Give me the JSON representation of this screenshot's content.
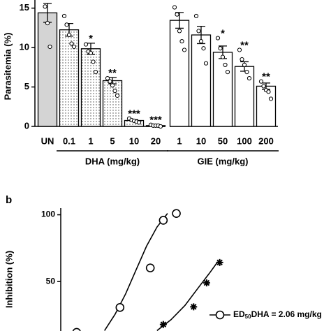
{
  "chart_data": [
    {
      "type": "bar",
      "y_label": "Parasitemia (%)",
      "categories": [
        "UN",
        "0.1",
        "1",
        "5",
        "10",
        "20",
        "1",
        "10",
        "50",
        "100",
        "200"
      ],
      "values": [
        14.4,
        12.25,
        9.85,
        5.8,
        0.75,
        0.1,
        13.45,
        11.6,
        9.4,
        7.6,
        5.1
      ],
      "errors": [
        1.2,
        0.8,
        0.7,
        0.4,
        0.1,
        0.05,
        1.0,
        1.1,
        0.8,
        0.6,
        0.4
      ],
      "points": [
        [
          15.2,
          13.1,
          10.1
        ],
        [
          14.0,
          12.9,
          11.6,
          10.5,
          10.1
        ],
        [
          10.4,
          9.5,
          9.3,
          8.2,
          6.9
        ],
        [
          6.1,
          5.7,
          5.2,
          4.5,
          3.9
        ],
        [
          1.0,
          0.8,
          0.7,
          0.6,
          0.5
        ],
        [
          0.2,
          0.1,
          0.1,
          0.1,
          0.0
        ],
        [
          15.1,
          14.2,
          12.1,
          10.8,
          9.7
        ],
        [
          14.0,
          12.1,
          10.8,
          9.9,
          8.0
        ],
        [
          11.2,
          9.9,
          8.8,
          7.8,
          6.9
        ],
        [
          9.7,
          8.5,
          7.8,
          6.9,
          6.1
        ],
        [
          5.7,
          5.1,
          4.6,
          4.4,
          3.5
        ]
      ],
      "significance": [
        null,
        null,
        "*",
        "**",
        "***",
        "***",
        null,
        null,
        "*",
        "**",
        "**"
      ],
      "fills": [
        "#d4d4d4",
        "dots",
        "dots",
        "dots",
        "dots",
        "dots",
        "#ffffff",
        "#ffffff",
        "#ffffff",
        "#ffffff",
        "#ffffff"
      ],
      "groups": [
        {
          "label": "DHA (mg/kg)",
          "from": 1,
          "to": 5
        },
        {
          "label": "GIE (mg/kg)",
          "from": 6,
          "to": 10
        }
      ],
      "ylim": [
        0,
        15.5
      ],
      "yticks": [
        0,
        5,
        10,
        15
      ]
    },
    {
      "type": "scatter",
      "panel_label": "b",
      "y_label": "Inhibition (%)",
      "xscale": "log",
      "xlim": [
        0.043,
        74000
      ],
      "ylim": [
        13,
        105
      ],
      "yticks": [
        50,
        100
      ],
      "series": [
        {
          "marker": "circle",
          "x": [
            0.1,
            1,
            5,
            10,
            20
          ],
          "values": [
            12,
            30.6,
            60.2,
            95.9,
            101
          ],
          "curve_x": [
            0.44,
            0.77,
            1.35,
            2.35,
            4.1,
            7.15,
            12.5
          ],
          "curve_y": [
            13.3,
            25.5,
            40.8,
            58.7,
            76.5,
            90.8,
            101
          ]
        },
        {
          "marker": "star",
          "x": [
            10,
            50,
            100,
            200
          ],
          "values": [
            17.9,
            31.1,
            49,
            64.3
          ],
          "curve_x": [
            7.15,
            15,
            31.5,
            66,
            115,
            180
          ],
          "curve_y": [
            13.3,
            21.4,
            32.1,
            45.9,
            56.1,
            64.8
          ]
        }
      ],
      "legend": [
        {
          "parts": [
            "ED",
            "50",
            "DHA = 2.06 mg/kg"
          ]
        }
      ]
    }
  ]
}
